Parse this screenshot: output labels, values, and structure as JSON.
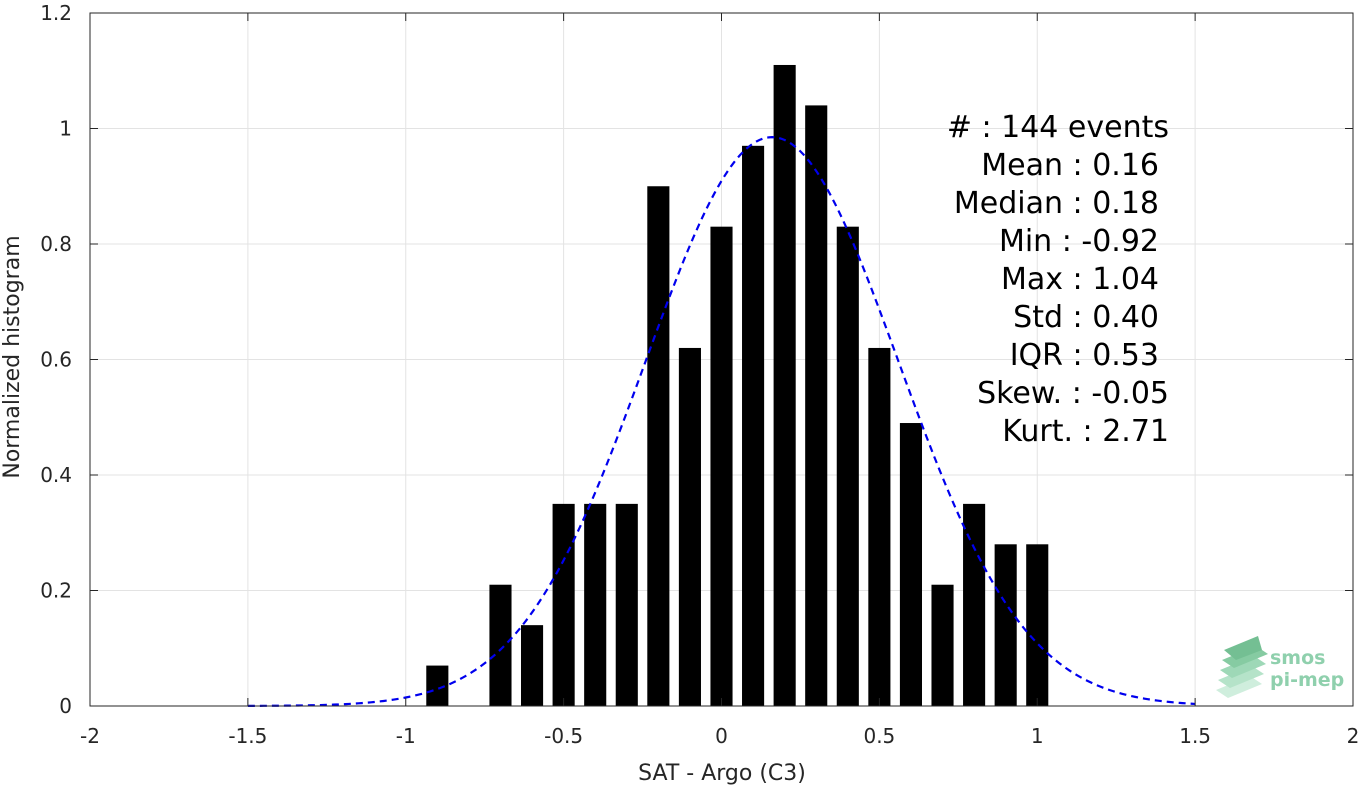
{
  "chart_data": {
    "type": "bar",
    "xlabel": "SAT - Argo (C3)",
    "ylabel": "Normalized histogram",
    "xlim": [
      -2,
      2
    ],
    "ylim": [
      0,
      1.2
    ],
    "grid": true,
    "x_ticks": [
      -2,
      -1.5,
      -1,
      -0.5,
      0,
      0.5,
      1,
      1.5,
      2
    ],
    "x_tick_labels": [
      "-2",
      "-1.5",
      "-1",
      "-0.5",
      "0",
      "0.5",
      "1",
      "1.5",
      "2"
    ],
    "y_ticks": [
      0,
      0.2,
      0.4,
      0.6,
      0.8,
      1,
      1.2
    ],
    "y_tick_labels": [
      "0",
      "0.2",
      "0.4",
      "0.6",
      "0.8",
      "1",
      "1.2"
    ],
    "bar_color": "#000000",
    "fit_color": "#0000ee",
    "bars": {
      "centers": [
        -0.9,
        -0.7,
        -0.6,
        -0.5,
        -0.4,
        -0.3,
        -0.2,
        -0.1,
        0.0,
        0.1,
        0.2,
        0.3,
        0.4,
        0.5,
        0.6,
        0.7,
        0.8,
        0.9,
        1.0
      ],
      "values": [
        0.07,
        0.21,
        0.14,
        0.35,
        0.35,
        0.35,
        0.9,
        0.62,
        0.83,
        0.97,
        1.11,
        1.04,
        0.83,
        0.62,
        0.49,
        0.21,
        0.35,
        0.28,
        0.28
      ],
      "width": 0.07
    },
    "fit": {
      "style": "dashed",
      "mean": 0.16,
      "std": 0.4,
      "peak": 0.985,
      "x_range": [
        -1.5,
        1.5
      ]
    },
    "stats_box": [
      {
        "label": "#  ",
        "value": "144 events",
        "align": "events"
      },
      {
        "label": "Mean",
        "value": "0.16"
      },
      {
        "label": "Median",
        "value": "0.18"
      },
      {
        "label": "Min",
        "value": "-0.92"
      },
      {
        "label": "Max",
        "value": "1.04"
      },
      {
        "label": "Std",
        "value": "0.40"
      },
      {
        "label": "IQR",
        "value": "0.53"
      },
      {
        "label": "Skew.",
        "value": "-0.05"
      },
      {
        "label": "Kurt.",
        "value": "2.71"
      }
    ],
    "stats_lines": [
      "#  : 144 events",
      "Mean : 0.16",
      "Median : 0.18",
      "Min : -0.92",
      "Max : 1.04",
      "Std : 0.40",
      "IQR : 0.53",
      "Skew. : -0.05",
      "Kurt. : 2.71"
    ]
  },
  "logo": {
    "line1": "smos",
    "line2": "pi-mep",
    "color_light": "#9fd8b8",
    "color_dark": "#5aa982"
  }
}
